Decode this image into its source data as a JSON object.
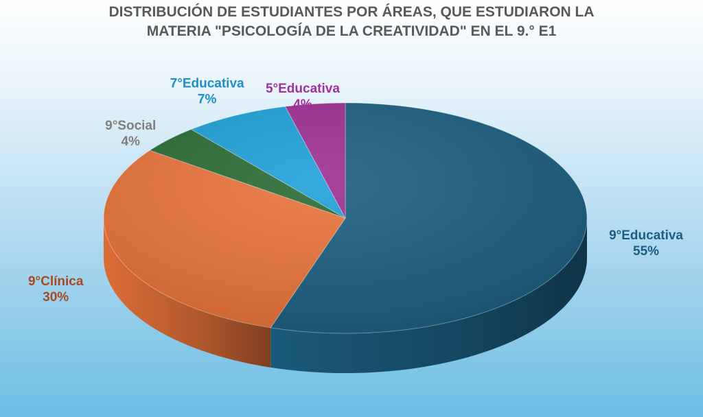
{
  "chart_data": {
    "type": "pie",
    "title_lines": [
      "DISTRIBUCIÓN DE ESTUDIANTES POR ÁREAS, QUE ESTUDIARON LA",
      "MATERIA \"PSICOLOGÍA DE LA CREATIVIDAD\" EN EL 9.° E1"
    ],
    "slices": [
      {
        "label": "9°Educativa",
        "percent_label": "55%",
        "value": 55,
        "color": "#1b5e80",
        "label_color": "#1b5e80"
      },
      {
        "label": "9°Clínica",
        "percent_label": "30%",
        "value": 30,
        "color": "#e8733a",
        "label_color": "#a64a22"
      },
      {
        "label": "9°Social",
        "percent_label": "4%",
        "value": 4,
        "color": "#2a6b33",
        "label_color": "#7f7f7f"
      },
      {
        "label": "7°Educativa",
        "percent_label": "7%",
        "value": 7,
        "color": "#1fa0d8",
        "label_color": "#1f8ec4"
      },
      {
        "label": "5°Educativa",
        "percent_label": "4%",
        "value": 4,
        "color": "#9c2f93",
        "label_color": "#a0309a"
      }
    ],
    "style": "3d-pie",
    "legend": "none"
  }
}
